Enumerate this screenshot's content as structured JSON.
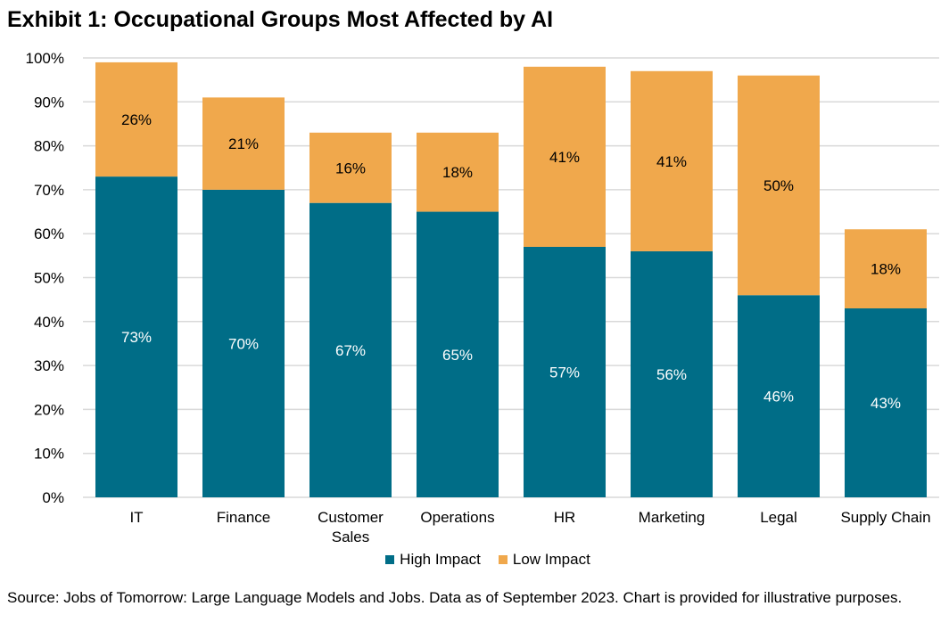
{
  "title": "Exhibit 1: Occupational Groups Most Affected by AI",
  "source": "Source: Jobs of Tomorrow: Large Language Models and Jobs. Data as of September 2023. Chart is provided for illustrative purposes.",
  "colors": {
    "high": "#006D87",
    "low": "#F0A84C",
    "grid": "#D9D9D9"
  },
  "chart_data": {
    "type": "bar",
    "stacked": true,
    "title": "Exhibit 1: Occupational Groups Most Affected by AI",
    "xlabel": "",
    "ylabel": "",
    "ylim": [
      0,
      100
    ],
    "yticks": [
      "0%",
      "10%",
      "20%",
      "30%",
      "40%",
      "50%",
      "60%",
      "70%",
      "80%",
      "90%",
      "100%"
    ],
    "grid": true,
    "legend_position": "bottom",
    "categories": [
      [
        "IT"
      ],
      [
        "Finance"
      ],
      [
        "Customer",
        "Sales"
      ],
      [
        "Operations"
      ],
      [
        "HR"
      ],
      [
        "Marketing"
      ],
      [
        "Legal"
      ],
      [
        "Supply Chain"
      ]
    ],
    "series": [
      {
        "name": "High Impact",
        "values": [
          73,
          70,
          67,
          65,
          57,
          56,
          46,
          43
        ],
        "labels": [
          "73%",
          "70%",
          "67%",
          "65%",
          "57%",
          "56%",
          "46%",
          "43%"
        ]
      },
      {
        "name": "Low Impact",
        "values": [
          26,
          21,
          16,
          18,
          41,
          41,
          50,
          18
        ],
        "labels": [
          "26%",
          "21%",
          "16%",
          "18%",
          "41%",
          "41%",
          "50%",
          "18%"
        ]
      }
    ]
  }
}
